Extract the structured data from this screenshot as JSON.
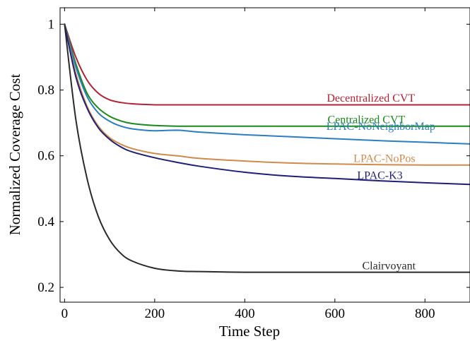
{
  "chart_data": {
    "type": "line",
    "title": "",
    "xlabel": "Time Step",
    "ylabel": "Normalized Coverage Cost",
    "xlim": [
      -10,
      900
    ],
    "ylim": [
      0.155,
      1.05
    ],
    "grid": false,
    "legend": "inline labels",
    "x_ticks": [
      0,
      200,
      400,
      600,
      800
    ],
    "y_ticks": [
      0.2,
      0.4,
      0.6,
      0.8,
      1
    ],
    "x_tick_labels": [
      "0",
      "200",
      "400",
      "600",
      "800"
    ],
    "y_tick_labels": [
      "0.2",
      "0.4",
      "0.6",
      "0.8",
      "1"
    ],
    "x": [
      0,
      25,
      50,
      75,
      100,
      125,
      150,
      200,
      250,
      300,
      400,
      500,
      600,
      700,
      800,
      900
    ],
    "series": [
      {
        "name": "Decentralized CVT",
        "color": "#b22234",
        "values": [
          1.0,
          0.9,
          0.83,
          0.79,
          0.77,
          0.762,
          0.758,
          0.755,
          0.755,
          0.755,
          0.755,
          0.755,
          0.755,
          0.755,
          0.755,
          0.755
        ]
      },
      {
        "name": "Centralized CVT",
        "color": "#1a8a1a",
        "values": [
          1.0,
          0.88,
          0.79,
          0.745,
          0.72,
          0.706,
          0.698,
          0.692,
          0.69,
          0.69,
          0.69,
          0.69,
          0.69,
          0.69,
          0.69,
          0.69
        ]
      },
      {
        "name": "LPAC-NoNeighborMap",
        "color": "#2b7ec1",
        "values": [
          1.0,
          0.87,
          0.78,
          0.73,
          0.705,
          0.69,
          0.682,
          0.676,
          0.678,
          0.672,
          0.664,
          0.658,
          0.652,
          0.646,
          0.641,
          0.636
        ]
      },
      {
        "name": "LPAC-NoPos",
        "color": "#d08a4a",
        "values": [
          1.0,
          0.85,
          0.75,
          0.69,
          0.655,
          0.635,
          0.622,
          0.607,
          0.6,
          0.592,
          0.584,
          0.578,
          0.575,
          0.573,
          0.572,
          0.572
        ]
      },
      {
        "name": "LPAC-K3",
        "color": "#1f1f78",
        "values": [
          1.0,
          0.84,
          0.745,
          0.685,
          0.65,
          0.627,
          0.612,
          0.594,
          0.58,
          0.568,
          0.55,
          0.538,
          0.531,
          0.524,
          0.518,
          0.513
        ]
      },
      {
        "name": "Clairvoyant",
        "color": "#2a2a2a",
        "values": [
          1.0,
          0.71,
          0.53,
          0.415,
          0.345,
          0.303,
          0.28,
          0.258,
          0.25,
          0.248,
          0.246,
          0.246,
          0.246,
          0.246,
          0.246,
          0.246
        ]
      }
    ],
    "labels": [
      {
        "text": "Decentralized CVT",
        "x": 680,
        "y": 0.775,
        "color": "#b22234"
      },
      {
        "text": "Centralized CVT",
        "x": 670,
        "y": 0.71,
        "color": "#1a8a1a"
      },
      {
        "text": "LPAC-NoNeighborMap",
        "x": 702,
        "y": 0.689,
        "color": "#2b7ec1"
      },
      {
        "text": "LPAC-NoPos",
        "x": 710,
        "y": 0.592,
        "color": "#d08a4a"
      },
      {
        "text": "LPAC-K3",
        "x": 700,
        "y": 0.54,
        "color": "#1f1f78"
      },
      {
        "text": "Clairvoyant",
        "x": 720,
        "y": 0.266,
        "color": "#2a2a2a"
      }
    ]
  }
}
